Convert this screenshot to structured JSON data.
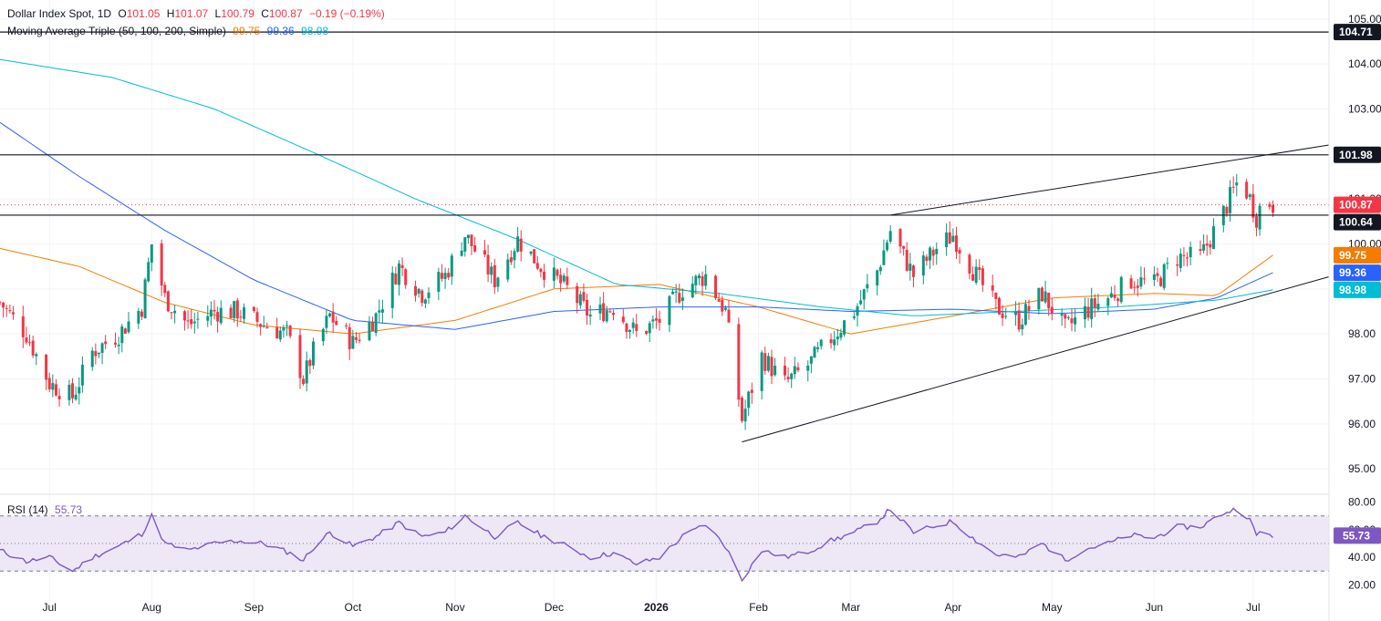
{
  "header": {
    "symbol": "Dollar Index Spot, 1D",
    "open_label": "O",
    "open": "101.05",
    "high_label": "H",
    "high": "101.07",
    "low_label": "L",
    "low": "100.79",
    "close_label": "C",
    "close": "100.87",
    "change": "−0.19 (−0.19%)",
    "ma_label": "Moving Average Triple (50, 100, 200, Simple)",
    "ma50": "99.75",
    "ma100": "99.36",
    "ma200": "98.98",
    "rsi_label": "RSI (14)",
    "rsi_value": "55.73"
  },
  "colors": {
    "up": "#089981",
    "down": "#f23645",
    "ma50": "#f57c00",
    "ma100": "#2962ff",
    "ma200": "#00bcd4",
    "rsi": "#7e57c2",
    "rsi_band": "#ede7f6",
    "grid": "#f0f3fa",
    "axis_text": "#131722"
  },
  "chart_data": [
    {
      "type": "candlestick",
      "title": "Dollar Index Spot, 1D",
      "y_ticks": [
        "105.00",
        "104.00",
        "103.00",
        "102.00",
        "101.00",
        "100.00",
        "99.00",
        "98.00",
        "97.00",
        "96.00",
        "95.00"
      ],
      "x_ticks": [
        "Jul",
        "Aug",
        "Sep",
        "Oct",
        "Nov",
        "Dec",
        "2026",
        "Feb",
        "Mar",
        "Apr",
        "May",
        "Jun",
        "Jul"
      ],
      "ylim": [
        94.7,
        105.3
      ],
      "price_labels": [
        {
          "text": "104.71",
          "value": 104.71,
          "style": "dark"
        },
        {
          "text": "101.98",
          "value": 101.98,
          "style": "dark"
        },
        {
          "text": "100.87",
          "value": 100.87,
          "style": "red"
        },
        {
          "text": "100.64",
          "value": 100.64,
          "style": "dark"
        },
        {
          "text": "99.75",
          "value": 99.75,
          "style": "orange"
        },
        {
          "text": "99.36",
          "value": 99.36,
          "style": "blue"
        },
        {
          "text": "98.98",
          "value": 98.98,
          "style": "teal"
        }
      ],
      "horizontal_lines": [
        104.71,
        101.98,
        100.64
      ],
      "current_price": 100.87,
      "trendlines": [
        {
          "from": [
            "Mar 13",
            100.64
          ],
          "to": [
            "Jul 24",
            102.2
          ]
        },
        {
          "from": [
            "Jan 27",
            95.6
          ],
          "to": [
            "Jul 24",
            99.27
          ]
        }
      ],
      "close_series_anchors": [
        [
          "Jun 16",
          98.7
        ],
        [
          "Jun 24",
          98.0
        ],
        [
          "Jul 1",
          96.9
        ],
        [
          "Jul 8",
          96.6
        ],
        [
          "Jul 14",
          97.6
        ],
        [
          "Jul 22",
          98.0
        ],
        [
          "Jul 29",
          98.6
        ],
        [
          "Aug 1",
          100.0
        ],
        [
          "Aug 5",
          98.8
        ],
        [
          "Aug 12",
          98.2
        ],
        [
          "Aug 20",
          98.5
        ],
        [
          "Aug 27",
          98.5
        ],
        [
          "Sep 4",
          98.2
        ],
        [
          "Sep 11",
          98.0
        ],
        [
          "Sep 16",
          97.0
        ],
        [
          "Sep 19",
          97.6
        ],
        [
          "Sep 24",
          98.4
        ],
        [
          "Oct 1",
          97.8
        ],
        [
          "Oct 8",
          98.4
        ],
        [
          "Oct 15",
          99.5
        ],
        [
          "Oct 22",
          98.9
        ],
        [
          "Oct 29",
          99.3
        ],
        [
          "Nov 4",
          100.2
        ],
        [
          "Nov 13",
          99.2
        ],
        [
          "Nov 20",
          100.1
        ],
        [
          "Nov 27",
          99.5
        ],
        [
          "Dec 5",
          99.0
        ],
        [
          "Dec 12",
          98.4
        ],
        [
          "Dec 19",
          98.6
        ],
        [
          "Dec 26",
          98.0
        ],
        [
          "Jan 2",
          98.3
        ],
        [
          "Jan 9",
          99.0
        ],
        [
          "Jan 16",
          99.3
        ],
        [
          "Jan 22",
          98.5
        ],
        [
          "Jan 27",
          96.1
        ],
        [
          "Feb 2",
          97.5
        ],
        [
          "Feb 9",
          96.9
        ],
        [
          "Feb 16",
          97.3
        ],
        [
          "Feb 23",
          97.9
        ],
        [
          "Mar 2",
          98.5
        ],
        [
          "Mar 9",
          99.4
        ],
        [
          "Mar 13",
          100.3
        ],
        [
          "Mar 20",
          99.3
        ],
        [
          "Mar 27",
          99.9
        ],
        [
          "Apr 1",
          100.2
        ],
        [
          "Apr 8",
          99.3
        ],
        [
          "Apr 14",
          98.6
        ],
        [
          "Apr 21",
          98.3
        ],
        [
          "Apr 28",
          98.9
        ],
        [
          "May 5",
          98.1
        ],
        [
          "May 11",
          98.5
        ],
        [
          "May 18",
          98.8
        ],
        [
          "May 25",
          99.2
        ],
        [
          "Jun 1",
          99.1
        ],
        [
          "Jun 8",
          99.7
        ],
        [
          "Jun 15",
          99.7
        ],
        [
          "Jun 22",
          100.7
        ],
        [
          "Jun 27",
          101.5
        ],
        [
          "Jun 30",
          101.0
        ],
        [
          "Jul 2",
          100.6
        ],
        [
          "Jul 4",
          101.0
        ],
        [
          "Jul 7",
          100.87
        ]
      ],
      "series": [
        {
          "name": "SMA 50",
          "values_anchors": [
            [
              "Jun 16",
              99.9
            ],
            [
              "Jul 10",
              99.5
            ],
            [
              "Aug 5",
              98.7
            ],
            [
              "Sep 1",
              98.2
            ],
            [
              "Oct 1",
              98.0
            ],
            [
              "Nov 1",
              98.3
            ],
            [
              "Dec 1",
              99.0
            ],
            [
              "Jan 2",
              99.1
            ],
            [
              "Feb 1",
              98.6
            ],
            [
              "Mar 1",
              98.0
            ],
            [
              "Apr 1",
              98.4
            ],
            [
              "May 1",
              98.8
            ],
            [
              "Jun 1",
              98.9
            ],
            [
              "Jun 20",
              98.85
            ],
            [
              "Jul 7",
              99.75
            ]
          ]
        },
        {
          "name": "SMA 100",
          "values_anchors": [
            [
              "Jun 16",
              102.7
            ],
            [
              "Jul 10",
              101.5
            ],
            [
              "Aug 5",
              100.3
            ],
            [
              "Sep 1",
              99.2
            ],
            [
              "Oct 1",
              98.3
            ],
            [
              "Nov 1",
              98.1
            ],
            [
              "Dec 1",
              98.5
            ],
            [
              "Jan 2",
              98.6
            ],
            [
              "Feb 1",
              98.6
            ],
            [
              "Mar 1",
              98.5
            ],
            [
              "Apr 1",
              98.55
            ],
            [
              "May 1",
              98.45
            ],
            [
              "Jun 1",
              98.55
            ],
            [
              "Jun 20",
              98.8
            ],
            [
              "Jul 7",
              99.36
            ]
          ]
        },
        {
          "name": "SMA 200",
          "values_anchors": [
            [
              "Jun 16",
              104.1
            ],
            [
              "Jul 20",
              103.7
            ],
            [
              "Aug 20",
              103.0
            ],
            [
              "Sep 20",
              102.0
            ],
            [
              "Oct 20",
              101.0
            ],
            [
              "Nov 20",
              100.1
            ],
            [
              "Dec 20",
              99.1
            ],
            [
              "Jan 20",
              98.9
            ],
            [
              "Feb 20",
              98.6
            ],
            [
              "Mar 20",
              98.4
            ],
            [
              "Apr 20",
              98.5
            ],
            [
              "May 20",
              98.6
            ],
            [
              "Jun 20",
              98.75
            ],
            [
              "Jul 7",
              98.98
            ]
          ]
        }
      ]
    },
    {
      "type": "line",
      "title": "RSI (14)",
      "y_ticks": [
        "80.00",
        "60.00",
        "40.00",
        "20.00"
      ],
      "ylim": [
        17,
        83
      ],
      "band": [
        30,
        70
      ],
      "midline": 50,
      "current_value": 55.73,
      "current_label": "55.73",
      "values_anchors": [
        [
          "Jun 16",
          45
        ],
        [
          "Jun 24",
          37
        ],
        [
          "Jul 1",
          40
        ],
        [
          "Jul 8",
          30
        ],
        [
          "Jul 14",
          40
        ],
        [
          "Jul 22",
          48
        ],
        [
          "Jul 29",
          57
        ],
        [
          "Aug 1",
          70
        ],
        [
          "Aug 5",
          50
        ],
        [
          "Aug 12",
          45
        ],
        [
          "Aug 20",
          50
        ],
        [
          "Aug 27",
          52
        ],
        [
          "Sep 4",
          50
        ],
        [
          "Sep 11",
          44
        ],
        [
          "Sep 16",
          38
        ],
        [
          "Sep 19",
          47
        ],
        [
          "Sep 24",
          58
        ],
        [
          "Oct 1",
          48
        ],
        [
          "Oct 8",
          55
        ],
        [
          "Oct 15",
          65
        ],
        [
          "Oct 22",
          55
        ],
        [
          "Oct 29",
          58
        ],
        [
          "Nov 4",
          70
        ],
        [
          "Nov 13",
          55
        ],
        [
          "Nov 20",
          65
        ],
        [
          "Nov 27",
          56
        ],
        [
          "Dec 5",
          48
        ],
        [
          "Dec 12",
          40
        ],
        [
          "Dec 19",
          43
        ],
        [
          "Dec 26",
          35
        ],
        [
          "Jan 2",
          40
        ],
        [
          "Jan 9",
          55
        ],
        [
          "Jan 16",
          64
        ],
        [
          "Jan 22",
          48
        ],
        [
          "Jan 27",
          24
        ],
        [
          "Feb 2",
          45
        ],
        [
          "Feb 9",
          40
        ],
        [
          "Feb 16",
          44
        ],
        [
          "Feb 23",
          52
        ],
        [
          "Mar 2",
          58
        ],
        [
          "Mar 9",
          66
        ],
        [
          "Mar 13",
          75
        ],
        [
          "Mar 20",
          58
        ],
        [
          "Mar 27",
          63
        ],
        [
          "Apr 1",
          66
        ],
        [
          "Apr 8",
          52
        ],
        [
          "Apr 14",
          42
        ],
        [
          "Apr 21",
          40
        ],
        [
          "Apr 28",
          50
        ],
        [
          "May 5",
          38
        ],
        [
          "May 11",
          46
        ],
        [
          "May 18",
          50
        ],
        [
          "May 25",
          56
        ],
        [
          "Jun 1",
          54
        ],
        [
          "Jun 8",
          62
        ],
        [
          "Jun 15",
          62
        ],
        [
          "Jun 22",
          72
        ],
        [
          "Jun 27",
          76
        ],
        [
          "Jun 30",
          67
        ],
        [
          "Jul 2",
          56
        ],
        [
          "Jul 4",
          60
        ],
        [
          "Jul 7",
          55.73
        ]
      ]
    }
  ]
}
